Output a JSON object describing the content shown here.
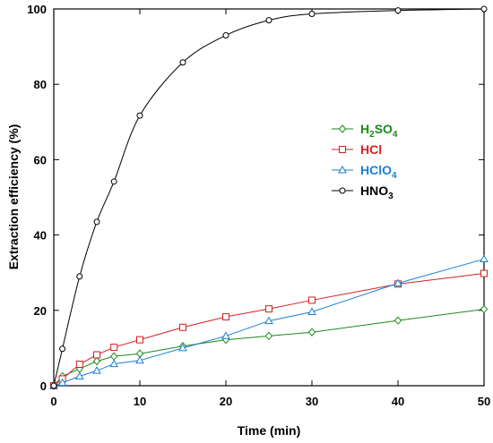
{
  "chart_data": {
    "type": "line",
    "xlabel": "Time (min)",
    "ylabel": "Extraction efficiency (%)",
    "xlim": [
      0,
      50
    ],
    "ylim": [
      0,
      100
    ],
    "xticks": [
      "0",
      "10",
      "20",
      "30",
      "40",
      "50"
    ],
    "yticks": [
      "0",
      "20",
      "40",
      "60",
      "80",
      "100"
    ],
    "grid": false,
    "legend_position": "right-middle",
    "series": [
      {
        "name": "H2SO4",
        "name_main": "H",
        "name_sub1": "2",
        "name_mid": "SO",
        "name_sub2": "4",
        "color": "#1a8a1a",
        "marker": "diamond",
        "x": [
          0,
          1,
          3,
          5,
          7,
          10,
          15,
          20,
          25,
          30,
          40,
          50
        ],
        "y": [
          0,
          2.5,
          4.5,
          6.5,
          7.8,
          8.5,
          10.5,
          12.2,
          13.2,
          14.2,
          17.3,
          20.3
        ]
      },
      {
        "name": "HCl",
        "name_main": "HCl",
        "color": "#d42020",
        "marker": "square",
        "x": [
          0,
          1,
          3,
          5,
          7,
          10,
          15,
          20,
          25,
          30,
          40,
          50
        ],
        "y": [
          0,
          1.8,
          5.7,
          8.2,
          10.2,
          12.2,
          15.5,
          18.3,
          20.4,
          22.7,
          27,
          29.8
        ]
      },
      {
        "name": "HClO4",
        "name_main": "HClO",
        "name_sub1": "4",
        "color": "#1a7fd4",
        "marker": "triangle",
        "x": [
          0,
          1,
          3,
          5,
          7,
          10,
          15,
          20,
          25,
          30,
          40,
          50
        ],
        "y": [
          0,
          0.8,
          2.5,
          4,
          5.8,
          6.7,
          10,
          13.2,
          17.2,
          19.6,
          27.2,
          33.6
        ]
      },
      {
        "name": "HNO3",
        "name_main": "HNO",
        "name_sub1": "3",
        "color": "#000000",
        "marker": "circle",
        "x": [
          0,
          1,
          3,
          5,
          7,
          10,
          15,
          20,
          25,
          30,
          40,
          50
        ],
        "y": [
          0,
          9.8,
          29,
          43.5,
          54.2,
          71.7,
          85.8,
          93,
          97,
          98.7,
          99.6,
          100
        ]
      }
    ]
  }
}
